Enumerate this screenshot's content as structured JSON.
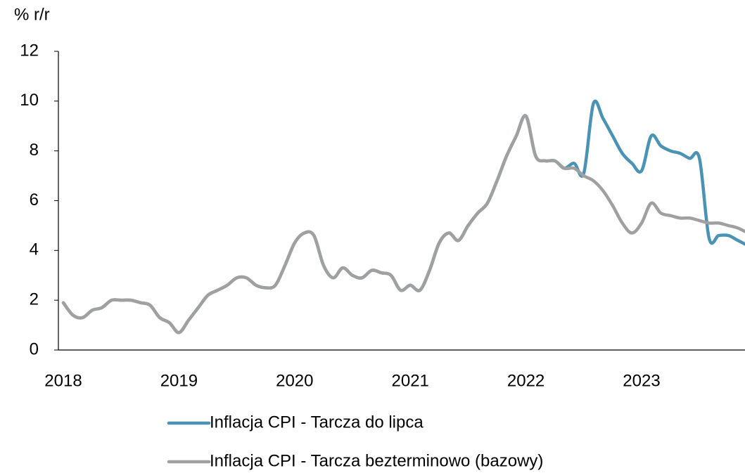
{
  "chart_data": {
    "type": "line",
    "y_label": "% r/r",
    "categories": [
      "2018",
      null,
      null,
      null,
      null,
      null,
      null,
      null,
      null,
      null,
      null,
      null,
      "2019",
      null,
      null,
      null,
      null,
      null,
      null,
      null,
      null,
      null,
      null,
      null,
      "2020",
      null,
      null,
      null,
      null,
      null,
      null,
      null,
      null,
      null,
      null,
      null,
      "2021",
      null,
      null,
      null,
      null,
      null,
      null,
      null,
      null,
      null,
      null,
      null,
      "2022",
      null,
      null,
      null,
      null,
      null,
      null,
      null,
      null,
      null,
      null,
      null,
      "2023",
      null,
      null,
      null,
      null,
      null,
      null,
      null,
      null,
      null,
      null,
      null
    ],
    "series": [
      {
        "name": "Inflacja CPI - Tarcza do lipca",
        "color": "#4a93b4",
        "values": [
          1.9,
          1.4,
          1.3,
          1.6,
          1.7,
          2.0,
          2.0,
          2.0,
          1.9,
          1.8,
          1.3,
          1.1,
          0.7,
          1.2,
          1.7,
          2.2,
          2.4,
          2.6,
          2.9,
          2.9,
          2.6,
          2.5,
          2.6,
          3.4,
          4.3,
          4.7,
          4.6,
          3.4,
          2.9,
          3.3,
          3.0,
          2.9,
          3.2,
          3.1,
          3.0,
          2.4,
          2.6,
          2.4,
          3.2,
          4.3,
          4.7,
          4.4,
          5.0,
          5.5,
          5.9,
          6.8,
          7.8,
          8.6,
          9.4,
          7.8,
          7.6,
          7.6,
          7.3,
          7.5,
          7.1,
          9.9,
          9.3,
          8.6,
          7.9,
          7.5,
          7.2,
          8.6,
          8.2,
          8.0,
          7.9,
          7.7,
          7.7,
          4.5,
          4.6,
          4.6,
          4.4,
          4.2
        ]
      },
      {
        "name": "Inflacja CPI - Tarcza bezterminowo (bazowy)",
        "color": "#a0a0a0",
        "values": [
          1.9,
          1.4,
          1.3,
          1.6,
          1.7,
          2.0,
          2.0,
          2.0,
          1.9,
          1.8,
          1.3,
          1.1,
          0.7,
          1.2,
          1.7,
          2.2,
          2.4,
          2.6,
          2.9,
          2.9,
          2.6,
          2.5,
          2.6,
          3.4,
          4.3,
          4.7,
          4.6,
          3.4,
          2.9,
          3.3,
          3.0,
          2.9,
          3.2,
          3.1,
          3.0,
          2.4,
          2.6,
          2.4,
          3.2,
          4.3,
          4.7,
          4.4,
          5.0,
          5.5,
          5.9,
          6.8,
          7.8,
          8.6,
          9.4,
          7.8,
          7.6,
          7.6,
          7.3,
          7.3,
          7.0,
          6.8,
          6.4,
          5.8,
          5.1,
          4.7,
          5.1,
          5.9,
          5.5,
          5.4,
          5.3,
          5.3,
          5.2,
          5.1,
          5.1,
          5.0,
          4.9,
          4.7
        ]
      }
    ],
    "ylim": [
      0,
      12
    ],
    "yticks": [
      0,
      2,
      4,
      6,
      8,
      10,
      12
    ],
    "grid": false,
    "legend": "bottom"
  }
}
